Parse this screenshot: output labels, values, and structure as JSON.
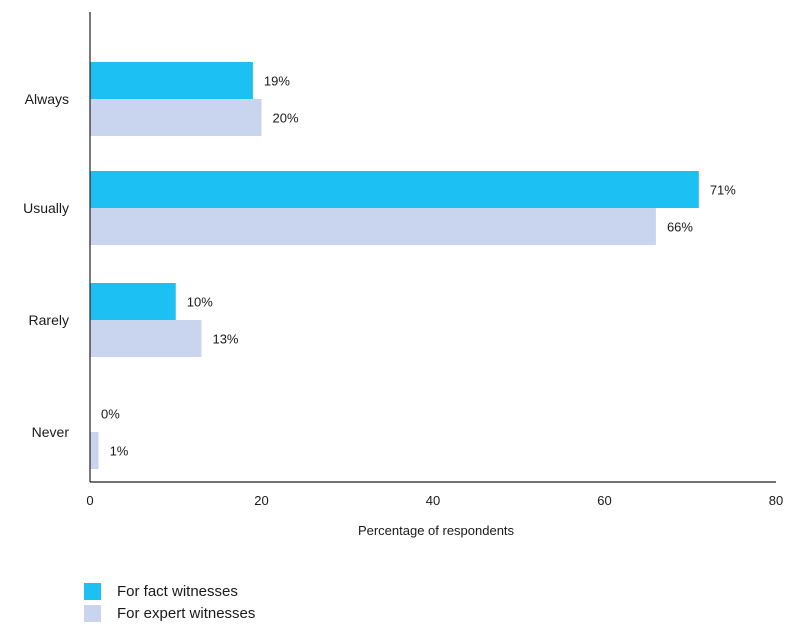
{
  "chart_data": {
    "type": "bar",
    "orientation": "horizontal",
    "categories": [
      "Always",
      "Usually",
      "Rarely",
      "Never"
    ],
    "series": [
      {
        "name": "For fact witnesses",
        "values": [
          19,
          71,
          10,
          0
        ],
        "labels": [
          "19%",
          "71%",
          "10%",
          "0%"
        ],
        "color": "#1dc0f2"
      },
      {
        "name": "For expert witnesses",
        "values": [
          20,
          66,
          13,
          1
        ],
        "labels": [
          "20%",
          "66%",
          "13%",
          "1%"
        ],
        "color": "#c9d5ef"
      }
    ],
    "xlabel": "Percentage of respondents",
    "ylabel": "",
    "title": "",
    "xlim": [
      0,
      80
    ],
    "xticks": [
      0,
      20,
      40,
      60,
      80
    ],
    "grid": false,
    "legend_position": "bottom-left"
  }
}
